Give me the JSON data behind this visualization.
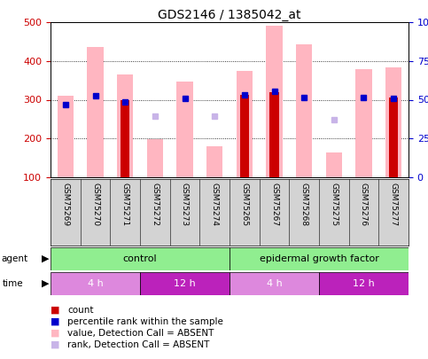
{
  "title": "GDS2146 / 1385042_at",
  "samples": [
    "GSM75269",
    "GSM75270",
    "GSM75271",
    "GSM75272",
    "GSM75273",
    "GSM75274",
    "GSM75265",
    "GSM75267",
    "GSM75268",
    "GSM75275",
    "GSM75276",
    "GSM75277"
  ],
  "ylim_left": [
    100,
    500
  ],
  "ylim_right": [
    0,
    100
  ],
  "yticks_left": [
    100,
    200,
    300,
    400,
    500
  ],
  "yticks_right": [
    0,
    25,
    50,
    75,
    100
  ],
  "ytick_labels_right": [
    "0",
    "25",
    "50",
    "75",
    "100%"
  ],
  "pink_bars": [
    310,
    435,
    365,
    198,
    346,
    181,
    375,
    490,
    443,
    163,
    380,
    383
  ],
  "red_bars": [
    null,
    null,
    300,
    null,
    null,
    null,
    312,
    320,
    null,
    null,
    null,
    305
  ],
  "blue_squares": [
    287,
    310,
    295,
    null,
    303,
    null,
    313,
    322,
    305,
    null,
    305,
    304
  ],
  "light_purple_squares": [
    null,
    null,
    null,
    258,
    null,
    258,
    null,
    null,
    null,
    248,
    null,
    null
  ],
  "agent_groups": [
    {
      "label": "control",
      "start": 0,
      "end": 6
    },
    {
      "label": "epidermal growth factor",
      "start": 6,
      "end": 12
    }
  ],
  "time_groups": [
    {
      "label": "4 h",
      "start": 0,
      "end": 3
    },
    {
      "label": "12 h",
      "start": 3,
      "end": 6
    },
    {
      "label": "4 h",
      "start": 6,
      "end": 9
    },
    {
      "label": "12 h",
      "start": 9,
      "end": 12
    }
  ],
  "pink_bar_color": "#FFB6C1",
  "red_bar_color": "#CC0000",
  "blue_sq_color": "#0000CC",
  "purple_sq_color": "#C8B4E8",
  "agent_color": "#90EE90",
  "time_color_4h": "#DD88DD",
  "time_color_12h": "#BB22BB",
  "axis_color_left": "#CC0000",
  "axis_color_right": "#0000CC",
  "grid_color": "black",
  "bg_color": "#FFFFFF",
  "label_bg_color": "#D3D3D3"
}
